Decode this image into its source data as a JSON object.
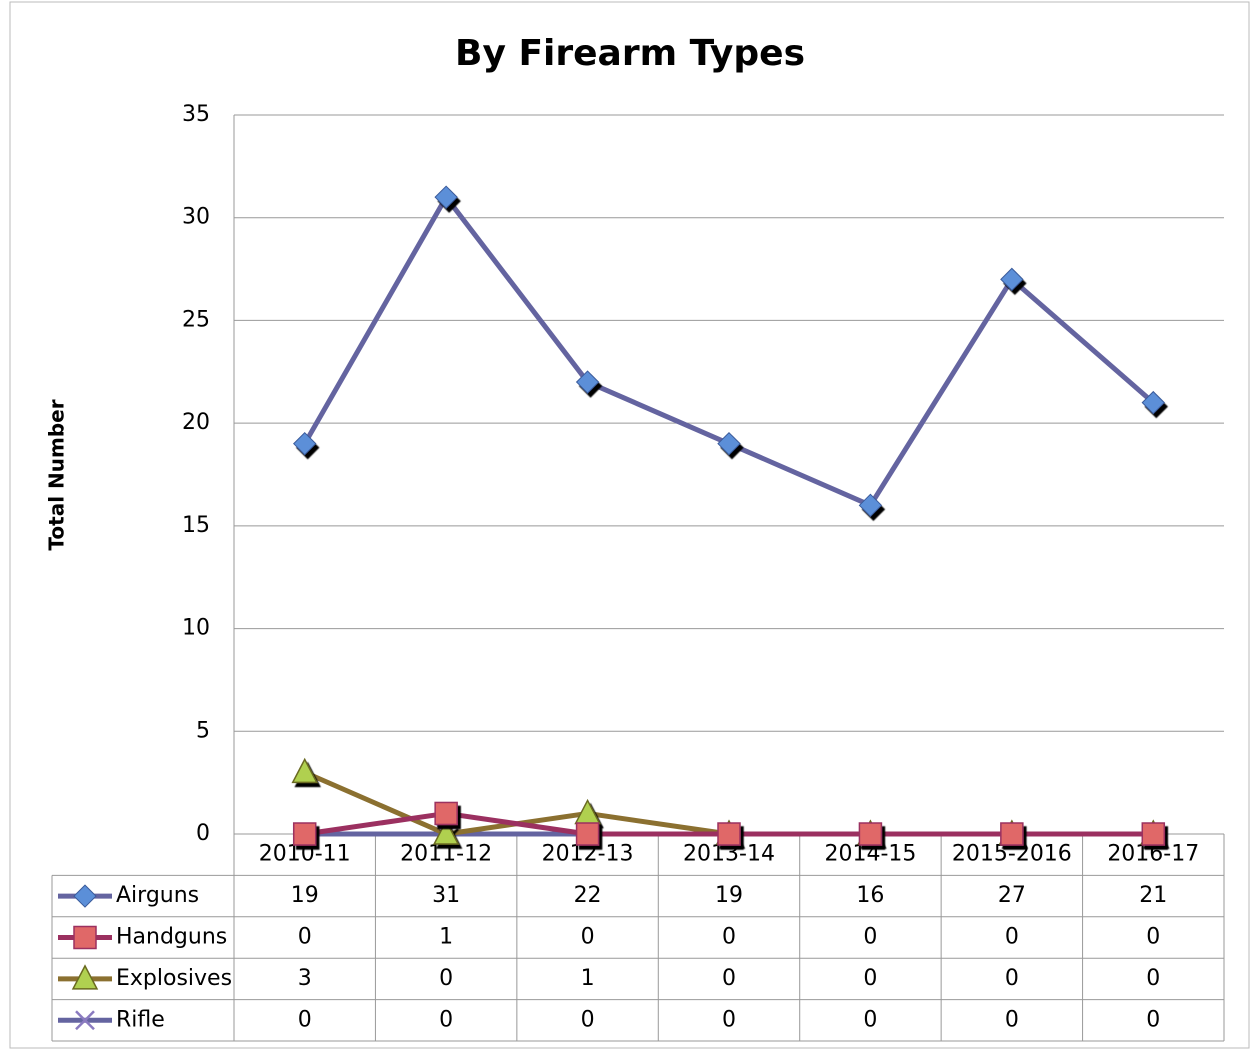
{
  "chart_data": {
    "type": "line",
    "title": "By Firearm Types",
    "y_label": "Total Number",
    "categories": [
      "2010-11",
      "2011-12",
      "2012-13",
      "2013-14",
      "2014-15",
      "2015-2016",
      "2016-17"
    ],
    "series": [
      {
        "name": "Airguns",
        "color": "#6464a0",
        "marker": "diamond",
        "marker_color": "#5b8fd8",
        "values": [
          19,
          31,
          22,
          19,
          16,
          27,
          21
        ]
      },
      {
        "name": "Handguns",
        "color": "#9b3060",
        "marker": "square",
        "marker_color": "#e06868",
        "values": [
          0,
          1,
          0,
          0,
          0,
          0,
          0
        ]
      },
      {
        "name": "Explosives",
        "color": "#8b7030",
        "marker": "triangle",
        "marker_color": "#b0d050",
        "values": [
          3,
          0,
          1,
          0,
          0,
          0,
          0
        ]
      },
      {
        "name": "Rifle",
        "color": "#6464a0",
        "marker": "x",
        "marker_color": "#8a7ac0",
        "values": [
          0,
          0,
          0,
          0,
          0,
          0,
          0
        ]
      }
    ],
    "ylim": [
      0,
      35
    ],
    "yticks": [
      0,
      5,
      10,
      15,
      20,
      25,
      30,
      35
    ],
    "grid": true,
    "data_table": true
  }
}
